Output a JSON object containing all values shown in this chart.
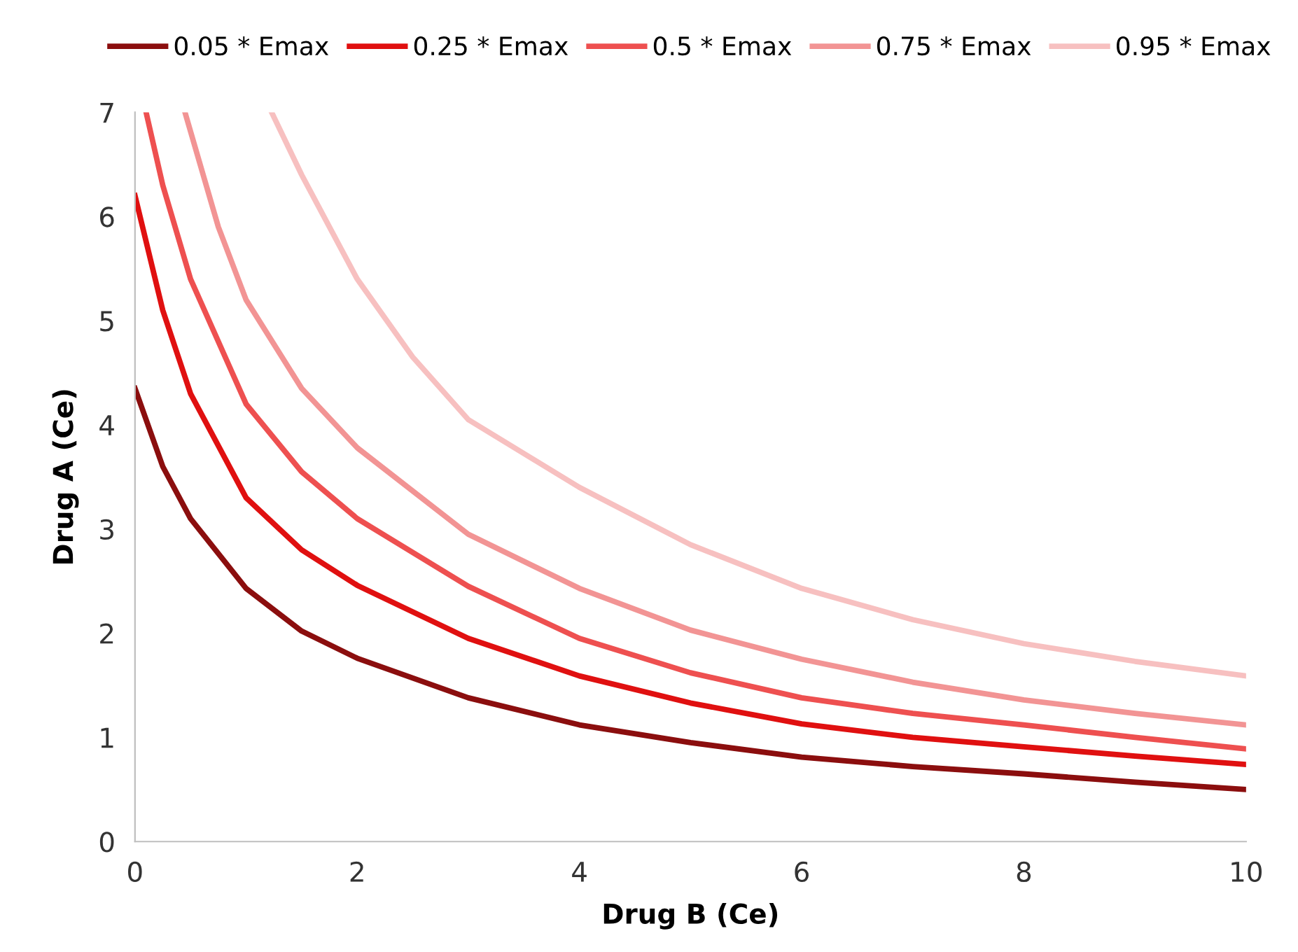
{
  "chart_data": {
    "type": "line",
    "xlabel": "Drug B (Ce)",
    "ylabel": "Drug A (Ce)",
    "xlim": [
      0,
      10
    ],
    "ylim": [
      0,
      7
    ],
    "xticks": [
      0,
      2,
      4,
      6,
      8,
      10
    ],
    "yticks": [
      0,
      1,
      2,
      3,
      4,
      5,
      6,
      7
    ],
    "grid": false,
    "legend": "top",
    "marker": "none",
    "line_style": "solid",
    "series": [
      {
        "name": "0.05 * Emax",
        "color": "#8b0e0e",
        "x": [
          0,
          0.25,
          0.5,
          1,
          1.5,
          2,
          3,
          4,
          5,
          6,
          7,
          8,
          9,
          10
        ],
        "values": [
          4.35,
          3.6,
          3.1,
          2.43,
          2.02,
          1.76,
          1.38,
          1.12,
          0.95,
          0.81,
          0.72,
          0.65,
          0.57,
          0.5
        ]
      },
      {
        "name": "0.25 * Emax",
        "color": "#e01010",
        "x": [
          0,
          0.25,
          0.5,
          1,
          1.5,
          2,
          3,
          4,
          5,
          6,
          7,
          8,
          9,
          10
        ],
        "values": [
          6.2,
          5.1,
          4.3,
          3.3,
          2.8,
          2.46,
          1.95,
          1.59,
          1.33,
          1.13,
          1.0,
          0.91,
          0.82,
          0.74
        ]
      },
      {
        "name": "0.5 * Emax",
        "color": "#ee5050",
        "x": [
          0.1,
          0.25,
          0.5,
          1,
          1.5,
          2,
          3,
          4,
          5,
          6,
          7,
          8,
          9,
          10
        ],
        "values": [
          7,
          6.3,
          5.4,
          4.2,
          3.55,
          3.1,
          2.45,
          1.95,
          1.62,
          1.38,
          1.23,
          1.12,
          1.0,
          0.89
        ]
      },
      {
        "name": "0.75 * Emax",
        "color": "#f29494",
        "x": [
          0.45,
          0.75,
          1,
          1.5,
          2,
          3,
          4,
          5,
          6,
          7,
          8,
          9,
          10
        ],
        "values": [
          7,
          5.9,
          5.2,
          4.35,
          3.78,
          2.95,
          2.43,
          2.03,
          1.75,
          1.53,
          1.36,
          1.23,
          1.12
        ]
      },
      {
        "name": "0.95 * Emax",
        "color": "#f7c0c0",
        "x": [
          1.23,
          1.5,
          2,
          2.5,
          3,
          4,
          5,
          6,
          7,
          8,
          9,
          10
        ],
        "values": [
          7,
          6.4,
          5.4,
          4.65,
          4.05,
          3.4,
          2.85,
          2.43,
          2.13,
          1.9,
          1.73,
          1.59
        ]
      }
    ]
  }
}
